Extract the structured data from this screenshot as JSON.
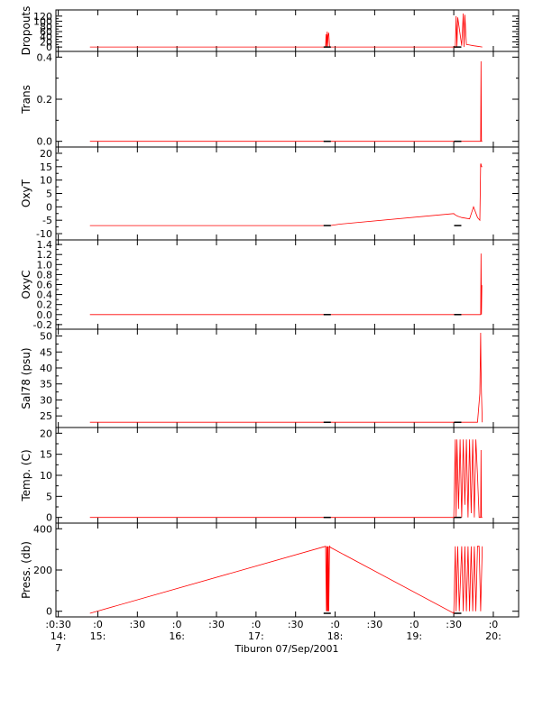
{
  "figure": {
    "footer_label": "Tiburon 07/Sep/2001",
    "x_tick_labels": [
      {
        "x": 14.5,
        "top": ":0:30",
        "mid": "14:",
        "bot": "7"
      },
      {
        "x": 15.0,
        "top": ":0",
        "mid": "15:",
        "bot": ""
      },
      {
        "x": 15.5,
        "top": ":30",
        "mid": "",
        "bot": ""
      },
      {
        "x": 16.0,
        "top": ":0",
        "mid": "16:",
        "bot": ""
      },
      {
        "x": 16.5,
        "top": ":30",
        "mid": "",
        "bot": ""
      },
      {
        "x": 17.0,
        "top": ":0",
        "mid": "17:",
        "bot": ""
      },
      {
        "x": 17.5,
        "top": ":30",
        "mid": "",
        "bot": ""
      },
      {
        "x": 18.0,
        "top": ":0",
        "mid": "18:",
        "bot": ""
      },
      {
        "x": 18.5,
        "top": ":30",
        "mid": "",
        "bot": ""
      },
      {
        "x": 19.0,
        "top": ":0",
        "mid": "19:",
        "bot": ""
      },
      {
        "x": 19.5,
        "top": ":30",
        "mid": "",
        "bot": ""
      },
      {
        "x": 20.0,
        "top": ":0",
        "mid": "20:",
        "bot": ""
      }
    ],
    "xlim": [
      14.47,
      20.32
    ],
    "line_color": "#ff0000",
    "marker_color": "#000000"
  },
  "chart_data": [
    {
      "type": "line",
      "ylabel": "Dropouts",
      "ylim": [
        -3,
        130
      ],
      "yticks": [
        0,
        20,
        40,
        60,
        80,
        100,
        120
      ],
      "ytick_labels": [
        "0",
        "20",
        "40",
        "60",
        "80",
        "100",
        "120"
      ],
      "x": [
        14.9,
        17.88,
        17.885,
        17.89,
        17.9,
        17.905,
        17.91,
        17.92,
        17.93,
        17.94,
        19.5,
        19.52,
        19.53,
        19.54,
        19.55,
        19.6,
        19.62,
        19.63,
        19.64,
        19.66,
        19.7,
        19.75,
        19.8,
        19.86
      ],
      "y": [
        0,
        0,
        50,
        0,
        60,
        0,
        45,
        55,
        0,
        0,
        0,
        0,
        120,
        0,
        115,
        5,
        130,
        0,
        125,
        10,
        8,
        5,
        3,
        0
      ]
    },
    {
      "type": "line",
      "ylabel": "Trans",
      "ylim": [
        -0.01,
        0.41
      ],
      "yticks": [
        0.0,
        0.2,
        0.4
      ],
      "ytick_labels": [
        "0.0",
        "0.2",
        "0.4"
      ],
      "x": [
        14.9,
        17.88,
        17.94,
        19.5,
        19.55,
        19.8,
        19.84,
        19.845,
        19.85,
        19.86
      ],
      "y": [
        0,
        0,
        0,
        0,
        0,
        0,
        0,
        0.38,
        0,
        0
      ]
    },
    {
      "type": "line",
      "ylabel": "OxyT",
      "ylim": [
        -11,
        21
      ],
      "yticks": [
        -10,
        -5,
        0,
        5,
        10,
        15,
        20
      ],
      "ytick_labels": [
        "-10",
        "-5",
        "0",
        "5",
        "10",
        "15",
        "20"
      ],
      "x": [
        14.9,
        17.88,
        17.94,
        18.05,
        19.5,
        19.52,
        19.55,
        19.6,
        19.7,
        19.75,
        19.8,
        19.83,
        19.84,
        19.845,
        19.85,
        19.86
      ],
      "y": [
        -7,
        -7,
        -7,
        -6.5,
        -2.5,
        -3,
        -3.5,
        -4,
        -4.5,
        0,
        -4,
        -5,
        16,
        16,
        15,
        15
      ]
    },
    {
      "type": "line",
      "ylabel": "OxyC",
      "ylim": [
        -0.22,
        1.42
      ],
      "yticks": [
        -0.2,
        0.0,
        0.2,
        0.4,
        0.6,
        0.8,
        1.0,
        1.2,
        1.4
      ],
      "ytick_labels": [
        "-0.2",
        "0.0",
        "0.2",
        "0.4",
        "0.6",
        "0.8",
        "1.0",
        "1.2",
        "1.4"
      ],
      "x": [
        14.9,
        17.88,
        17.94,
        19.5,
        19.55,
        19.8,
        19.84,
        19.845,
        19.85,
        19.855,
        19.86
      ],
      "y": [
        0,
        0,
        0,
        0,
        0,
        0,
        0,
        1.22,
        0,
        0.58,
        0.58
      ]
    },
    {
      "type": "line",
      "ylabel": "Sal78 (psu)",
      "ylim": [
        22.5,
        51
      ],
      "yticks": [
        25,
        30,
        35,
        40,
        45,
        50
      ],
      "ytick_labels": [
        "25",
        "30",
        "35",
        "40",
        "45",
        "50"
      ],
      "x": [
        14.9,
        17.88,
        17.94,
        19.5,
        19.55,
        19.8,
        19.83,
        19.84,
        19.845,
        19.85,
        19.86
      ],
      "y": [
        23,
        23,
        23,
        23,
        23,
        23,
        32,
        51,
        40,
        32,
        23
      ]
    },
    {
      "type": "line",
      "ylabel": "Temp. (C)",
      "ylim": [
        -0.5,
        20.5
      ],
      "yticks": [
        0,
        5,
        10,
        15,
        20
      ],
      "ytick_labels": [
        "0",
        "5",
        "10",
        "15",
        "20"
      ],
      "x": [
        14.9,
        17.88,
        17.94,
        19.5,
        19.52,
        19.53,
        19.54,
        19.56,
        19.58,
        19.6,
        19.62,
        19.64,
        19.66,
        19.68,
        19.7,
        19.72,
        19.74,
        19.76,
        19.78,
        19.8,
        19.82,
        19.84,
        19.845,
        19.85,
        19.86
      ],
      "y": [
        0,
        0,
        0,
        0,
        18.5,
        0,
        18.5,
        2,
        18.5,
        0,
        18.5,
        3,
        18.5,
        0,
        18.5,
        1,
        18.5,
        0,
        18.5,
        10,
        0,
        0,
        16,
        0,
        0
      ]
    },
    {
      "type": "line",
      "ylabel": "Press. (db)",
      "ylim": [
        -10,
        410
      ],
      "yticks": [
        0,
        200,
        400
      ],
      "ytick_labels": [
        "0",
        "200",
        "400"
      ],
      "x": [
        14.9,
        17.88,
        17.89,
        17.895,
        17.9,
        17.905,
        17.91,
        17.915,
        17.92,
        17.93,
        17.94,
        19.5,
        19.52,
        19.53,
        19.55,
        19.57,
        19.6,
        19.62,
        19.64,
        19.66,
        19.68,
        19.7,
        19.72,
        19.74,
        19.76,
        19.78,
        19.8,
        19.82,
        19.84,
        19.86
      ],
      "y": [
        -10,
        315,
        0,
        315,
        0,
        315,
        0,
        315,
        0,
        315,
        310,
        -10,
        315,
        0,
        315,
        0,
        315,
        0,
        315,
        0,
        315,
        0,
        315,
        0,
        315,
        0,
        315,
        315,
        0,
        315
      ]
    }
  ]
}
